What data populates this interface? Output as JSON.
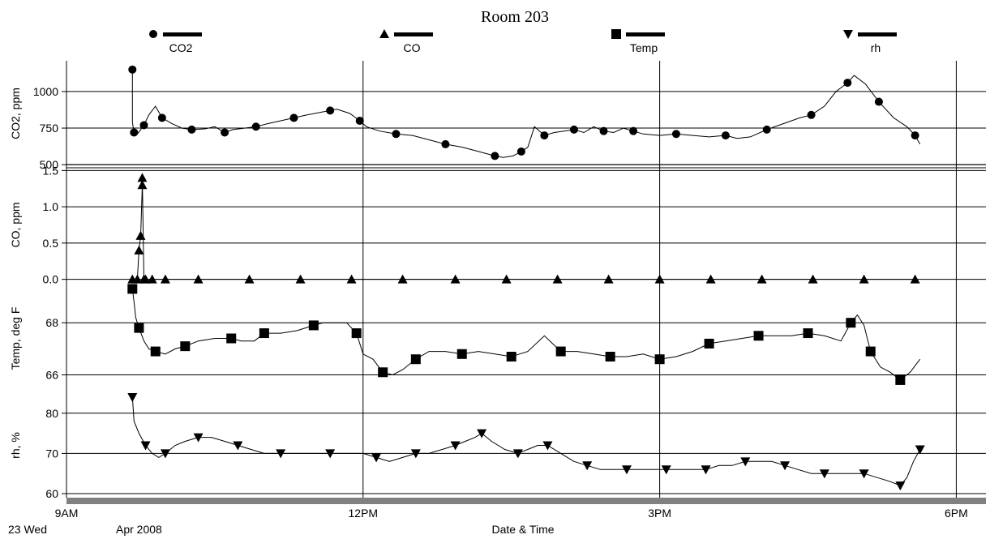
{
  "chart_data": {
    "type": "line",
    "title": "Room 203",
    "xlabel": "Date & Time",
    "date_labels": {
      "day": "23 Wed",
      "month": "Apr 2008"
    },
    "x_ticks": [
      "9AM",
      "12PM",
      "3PM",
      "6PM"
    ],
    "legend_placement": "top",
    "grid": true,
    "colors": {
      "line": "#000000",
      "grid": "#000000",
      "bottom_bar": "#808080"
    },
    "series": [
      {
        "name": "CO2",
        "panel": "co2",
        "marker": "circle",
        "ylabel": "CO2, ppm",
        "y_ticks": [
          "500",
          "750",
          "1000"
        ],
        "ylim": [
          490,
          1210
        ],
        "x": [
          "09:40",
          "09:40",
          "09:40",
          "09:41",
          "09:43",
          "09:45",
          "09:47",
          "09:50",
          "09:54",
          "09:58",
          "10:04",
          "10:10",
          "10:16",
          "10:24",
          "10:30",
          "10:36",
          "10:41",
          "10:48",
          "10:55",
          "11:02",
          "11:10",
          "11:18",
          "11:26",
          "11:35",
          "11:40",
          "11:44",
          "11:52",
          "11:58",
          "12:02",
          "12:10",
          "12:20",
          "12:30",
          "12:40",
          "12:50",
          "13:00",
          "13:10",
          "13:20",
          "13:25",
          "13:31",
          "13:36",
          "13:40",
          "13:44",
          "13:50",
          "13:56",
          "14:02",
          "14:08",
          "14:14",
          "14:20",
          "14:26",
          "14:32",
          "14:38",
          "14:44",
          "14:50",
          "15:00",
          "15:10",
          "15:20",
          "15:30",
          "15:40",
          "15:47",
          "15:55",
          "16:05",
          "16:15",
          "16:25",
          "16:32",
          "16:40",
          "16:47",
          "16:54",
          "16:58",
          "17:05",
          "17:13",
          "17:22",
          "17:30",
          "17:35",
          "17:38"
        ],
        "y": [
          1150,
          970,
          790,
          720,
          710,
          740,
          770,
          840,
          900,
          820,
          780,
          750,
          740,
          745,
          760,
          720,
          740,
          750,
          760,
          780,
          800,
          820,
          840,
          860,
          870,
          880,
          850,
          800,
          760,
          730,
          710,
          700,
          670,
          640,
          620,
          590,
          560,
          550,
          560,
          590,
          620,
          760,
          700,
          720,
          730,
          740,
          720,
          760,
          730,
          720,
          750,
          730,
          710,
          700,
          710,
          700,
          690,
          700,
          680,
          690,
          740,
          780,
          820,
          840,
          900,
          1000,
          1060,
          1110,
          1050,
          930,
          820,
          760,
          700,
          640
        ]
      },
      {
        "name": "CO",
        "panel": "co",
        "marker": "triangle-up",
        "ylabel": "CO, ppm",
        "y_ticks": [
          "0.0",
          "0.5",
          "1.0",
          "1.5"
        ],
        "ylim": [
          -0.06,
          1.56
        ],
        "x": [
          "09:40",
          "09:43",
          "09:44",
          "09:45",
          "09:46",
          "09:46",
          "09:47",
          "09:48",
          "09:52",
          "10:00",
          "10:20",
          "10:51",
          "11:22",
          "11:53",
          "12:24",
          "12:56",
          "13:27",
          "13:58",
          "14:29",
          "15:00",
          "15:31",
          "16:02",
          "16:33",
          "17:04",
          "17:35"
        ],
        "y": [
          0.0,
          0.0,
          0.4,
          0.6,
          1.3,
          1.4,
          0.0,
          0.0,
          0.0,
          0.0,
          0.0,
          0.0,
          0.0,
          0.0,
          0.0,
          0.0,
          0.0,
          0.0,
          0.0,
          0.0,
          0.0,
          0.0,
          0.0,
          0.0,
          0.0
        ]
      },
      {
        "name": "Temp",
        "panel": "temp",
        "marker": "square",
        "ylabel": "Temp, deg F",
        "y_ticks": [
          "66",
          "68"
        ],
        "ylim": [
          65.3,
          69.5
        ],
        "x": [
          "09:40",
          "09:41",
          "09:42",
          "09:44",
          "09:47",
          "09:50",
          "09:54",
          "10:00",
          "10:06",
          "10:12",
          "10:20",
          "10:30",
          "10:40",
          "10:46",
          "10:54",
          "11:00",
          "11:10",
          "11:20",
          "11:30",
          "11:36",
          "11:50",
          "11:56",
          "12:00",
          "12:06",
          "12:12",
          "12:18",
          "12:24",
          "12:32",
          "12:40",
          "12:50",
          "13:00",
          "13:10",
          "13:20",
          "13:30",
          "13:40",
          "13:50",
          "14:00",
          "14:10",
          "14:20",
          "14:30",
          "14:40",
          "14:50",
          "15:00",
          "15:10",
          "15:20",
          "15:30",
          "15:40",
          "15:50",
          "16:00",
          "16:10",
          "16:20",
          "16:30",
          "16:40",
          "16:50",
          "16:56",
          "17:00",
          "17:04",
          "17:08",
          "17:14",
          "17:20",
          "17:26",
          "17:32",
          "17:38"
        ],
        "y": [
          69.3,
          68.8,
          68.2,
          67.8,
          67.3,
          67.0,
          66.9,
          66.8,
          67.0,
          67.1,
          67.3,
          67.4,
          67.4,
          67.3,
          67.3,
          67.6,
          67.6,
          67.7,
          67.9,
          68.0,
          68.0,
          67.6,
          66.8,
          66.6,
          66.1,
          66.0,
          66.2,
          66.6,
          66.9,
          66.9,
          66.8,
          66.9,
          66.8,
          66.7,
          66.9,
          67.5,
          66.9,
          66.9,
          66.8,
          66.7,
          66.7,
          66.8,
          66.6,
          66.7,
          66.9,
          67.2,
          67.3,
          67.4,
          67.5,
          67.5,
          67.5,
          67.6,
          67.5,
          67.3,
          68.0,
          68.3,
          67.9,
          66.9,
          66.3,
          66.1,
          65.8,
          66.1,
          66.6
        ]
      },
      {
        "name": "rh",
        "panel": "rh",
        "marker": "triangle-down",
        "ylabel": "rh, %",
        "y_ticks": [
          "60",
          "70",
          "80"
        ],
        "ylim": [
          59,
          85
        ],
        "x": [
          "09:40",
          "09:41",
          "09:44",
          "09:48",
          "09:52",
          "09:56",
          "10:00",
          "10:06",
          "10:12",
          "10:20",
          "10:28",
          "10:36",
          "10:44",
          "10:52",
          "11:00",
          "11:10",
          "11:20",
          "11:30",
          "11:40",
          "11:50",
          "12:00",
          "12:08",
          "12:16",
          "12:24",
          "12:32",
          "12:40",
          "12:48",
          "12:56",
          "13:02",
          "13:08",
          "13:12",
          "13:18",
          "13:26",
          "13:34",
          "13:40",
          "13:46",
          "13:52",
          "14:00",
          "14:08",
          "14:16",
          "14:24",
          "14:32",
          "14:40",
          "14:48",
          "14:56",
          "15:04",
          "15:12",
          "15:20",
          "15:28",
          "15:36",
          "15:44",
          "15:52",
          "16:00",
          "16:08",
          "16:16",
          "16:24",
          "16:32",
          "16:40",
          "16:48",
          "16:56",
          "17:04",
          "17:12",
          "17:20",
          "17:26",
          "17:30",
          "17:34",
          "17:38"
        ],
        "y": [
          84,
          78,
          75,
          72,
          70,
          69,
          70,
          72,
          73,
          74,
          74,
          73,
          72,
          71,
          70,
          70,
          70,
          70,
          70,
          70,
          70,
          69,
          68,
          69,
          70,
          70,
          71,
          72,
          73,
          74,
          75,
          73,
          71,
          70,
          71,
          72,
          72,
          70,
          68,
          67,
          66,
          66,
          66,
          66,
          66,
          66,
          66,
          66,
          66,
          67,
          67,
          68,
          68,
          68,
          67,
          66,
          65,
          65,
          65,
          65,
          65,
          64,
          63,
          62,
          64,
          68,
          71
        ]
      }
    ]
  }
}
